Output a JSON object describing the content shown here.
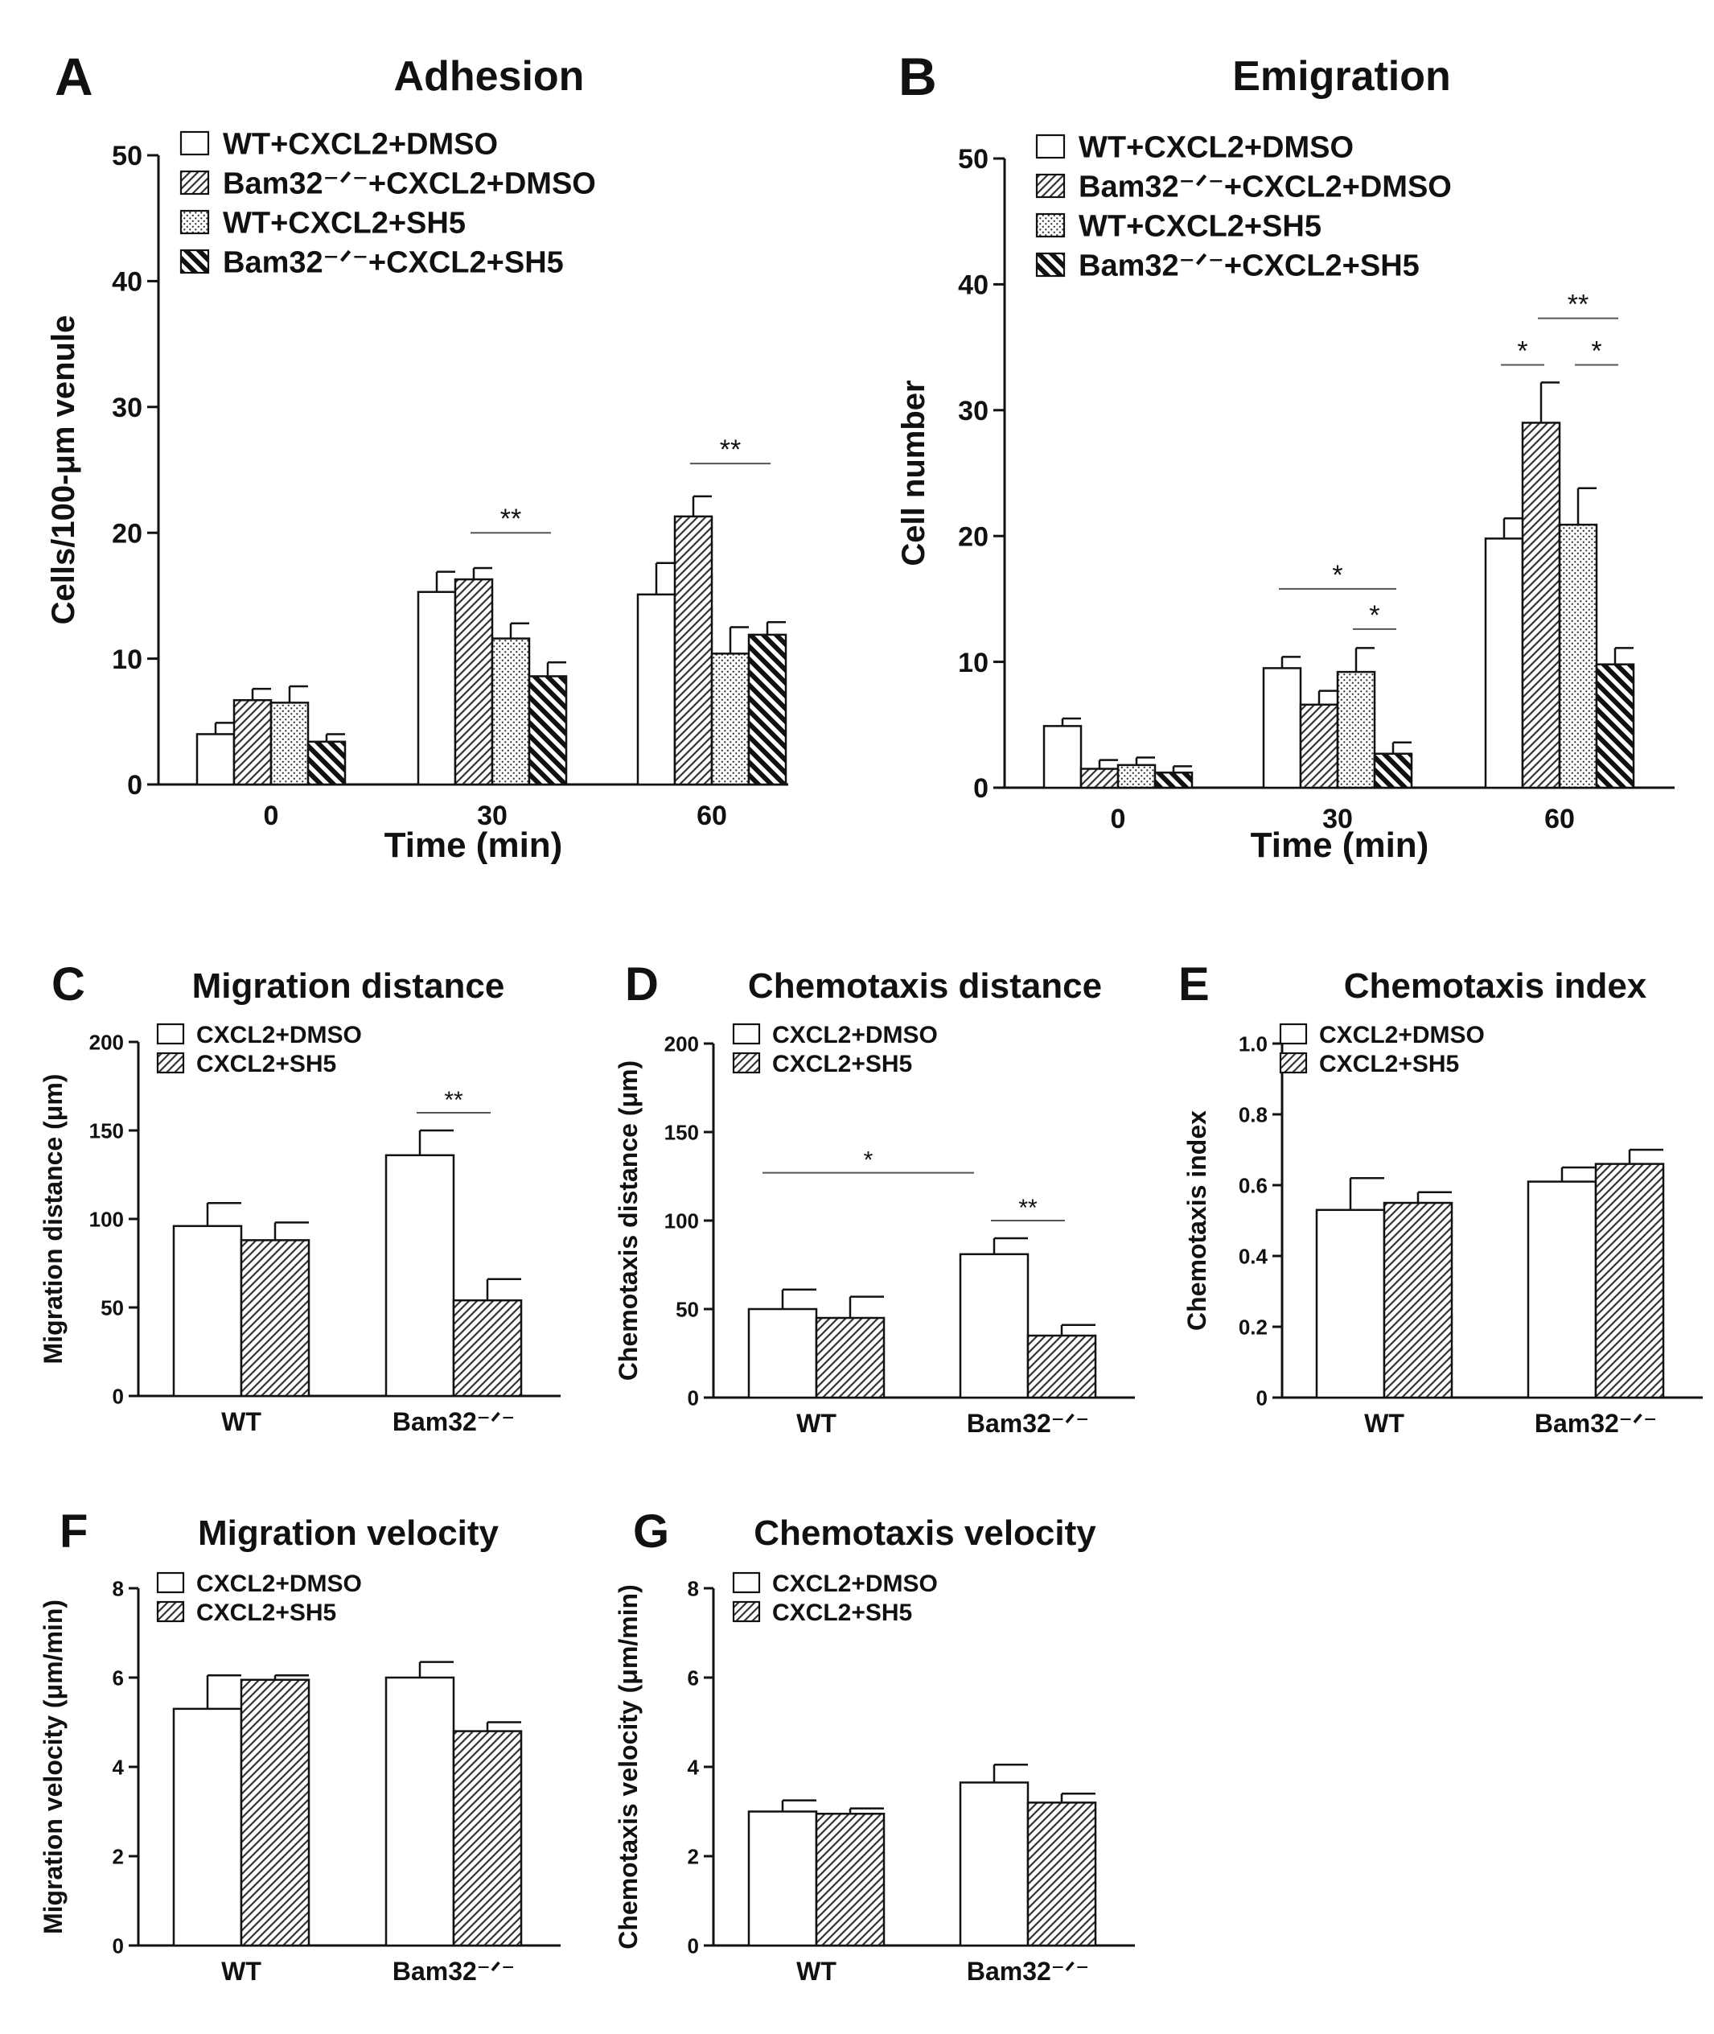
{
  "figure": {
    "series_styles": {
      "WT+CXCL2+DMSO": "open",
      "Bam32−/−+CXCL2+DMSO": "hatch",
      "WT+CXCL2+SH5": "dots",
      "Bam32−/−+CXCL2+SH5": "backslash",
      "CXCL2+DMSO": "open",
      "CXCL2+SH5": "hatch"
    },
    "colors": {
      "ink": "#111111",
      "background": "#ffffff",
      "hatch": "#333333"
    }
  },
  "chart_data": [
    {
      "panel": "A",
      "type": "bar",
      "title": "Adhesion",
      "xlabel": "Time (min)",
      "ylabel": "Cells/100-μm venule",
      "categories": [
        "0",
        "30",
        "60"
      ],
      "ylim": [
        0,
        50
      ],
      "yticks": [
        "0",
        "10",
        "20",
        "30",
        "40",
        "50"
      ],
      "series": [
        {
          "name": "WT+CXCL2+DMSO",
          "label": "WT+CXCL2+DMSO",
          "values": [
            4,
            15.3,
            15.1
          ],
          "errors": [
            0.9,
            1.6,
            2.5
          ]
        },
        {
          "name": "Bam32−/−+CXCL2+DMSO",
          "label": "Bam32⁻ᐟ⁻+CXCL2+DMSO",
          "values": [
            6.7,
            16.3,
            21.3
          ],
          "errors": [
            0.9,
            0.9,
            1.6
          ]
        },
        {
          "name": "WT+CXCL2+SH5",
          "label": "WT+CXCL2+SH5",
          "values": [
            6.5,
            11.6,
            10.4
          ],
          "errors": [
            1.3,
            1.2,
            2.1
          ]
        },
        {
          "name": "Bam32−/−+CXCL2+SH5",
          "label": "Bam32⁻ᐟ⁻+CXCL2+SH5",
          "values": [
            3.4,
            8.6,
            11.9
          ],
          "errors": [
            0.6,
            1.1,
            1.0
          ]
        }
      ],
      "significance": [
        {
          "text": "**",
          "category": 1,
          "from": 1,
          "to": 3,
          "y": 20
        },
        {
          "text": "**",
          "category": 2,
          "from": 1,
          "to": 3,
          "y": 25.5
        }
      ]
    },
    {
      "panel": "B",
      "type": "bar",
      "title": "Emigration",
      "xlabel": "Time (min)",
      "ylabel": "Cell number",
      "categories": [
        "0",
        "30",
        "60"
      ],
      "ylim": [
        0,
        50
      ],
      "yticks": [
        "0",
        "10",
        "20",
        "30",
        "40",
        "50"
      ],
      "series": [
        {
          "name": "WT+CXCL2+DMSO",
          "label": "WT+CXCL2+DMSO",
          "values": [
            4.9,
            9.5,
            19.8
          ],
          "errors": [
            0.6,
            0.9,
            1.6
          ]
        },
        {
          "name": "Bam32−/−+CXCL2+DMSO",
          "label": "Bam32⁻ᐟ⁻+CXCL2+DMSO",
          "values": [
            1.5,
            6.6,
            29
          ],
          "errors": [
            0.7,
            1.1,
            3.2
          ]
        },
        {
          "name": "WT+CXCL2+SH5",
          "label": "WT+CXCL2+SH5",
          "values": [
            1.8,
            9.2,
            20.9
          ],
          "errors": [
            0.6,
            1.9,
            2.9
          ]
        },
        {
          "name": "Bam32−/−+CXCL2+SH5",
          "label": "Bam32⁻ᐟ⁻+CXCL2+SH5",
          "values": [
            1.2,
            2.7,
            9.8
          ],
          "errors": [
            0.5,
            0.9,
            1.3
          ]
        }
      ],
      "significance": [
        {
          "text": "*",
          "category": 1,
          "from": 0,
          "to": 3,
          "y": 15.8
        },
        {
          "text": "*",
          "category": 1,
          "from": 2,
          "to": 3,
          "y": 12.6
        },
        {
          "text": "**",
          "category": 2,
          "from": 1,
          "to": 3,
          "y": 37.3
        },
        {
          "text": "*",
          "category": 2,
          "from": 0,
          "to": 1,
          "y": 33.6
        },
        {
          "text": "*",
          "category": 2,
          "from": 2,
          "to": 3,
          "y": 33.6
        }
      ]
    },
    {
      "panel": "C",
      "type": "bar",
      "title": "Migration distance",
      "xlabel": "",
      "ylabel": "Migration distance (μm)",
      "categories": [
        "WT",
        "Bam32⁻ᐟ⁻"
      ],
      "ylim": [
        0,
        200
      ],
      "yticks": [
        "0",
        "50",
        "100",
        "150",
        "200"
      ],
      "series": [
        {
          "name": "CXCL2+DMSO",
          "label": "CXCL2+DMSO",
          "values": [
            96,
            136
          ],
          "errors": [
            13,
            14
          ]
        },
        {
          "name": "CXCL2+SH5",
          "label": "CXCL2+SH5",
          "values": [
            88,
            54
          ],
          "errors": [
            10,
            12
          ]
        }
      ],
      "significance": [
        {
          "text": "**",
          "category": 1,
          "from": 0,
          "to": 1,
          "y": 160
        }
      ]
    },
    {
      "panel": "D",
      "type": "bar",
      "title": "Chemotaxis distance",
      "xlabel": "",
      "ylabel": "Chemotaxis distance (μm)",
      "categories": [
        "WT",
        "Bam32⁻ᐟ⁻"
      ],
      "ylim": [
        0,
        200
      ],
      "yticks": [
        "0",
        "50",
        "100",
        "150",
        "200"
      ],
      "series": [
        {
          "name": "CXCL2+DMSO",
          "label": "CXCL2+DMSO",
          "values": [
            50,
            81
          ],
          "errors": [
            11,
            9
          ]
        },
        {
          "name": "CXCL2+SH5",
          "label": "CXCL2+SH5",
          "values": [
            45,
            35
          ],
          "errors": [
            12,
            6
          ]
        }
      ],
      "significance": [
        {
          "text": "*",
          "span": [
            0,
            1
          ],
          "series": 0,
          "y": 127
        },
        {
          "text": "**",
          "category": 1,
          "from": 0,
          "to": 1,
          "y": 100
        }
      ]
    },
    {
      "panel": "E",
      "type": "bar",
      "title": "Chemotaxis index",
      "xlabel": "",
      "ylabel": "Chemotaxis index",
      "categories": [
        "WT",
        "Bam32⁻ᐟ⁻"
      ],
      "ylim": [
        0,
        1
      ],
      "yticks": [
        "0",
        "0.2",
        "0.4",
        "0.6",
        "0.8",
        "1.0"
      ],
      "series": [
        {
          "name": "CXCL2+DMSO",
          "label": "CXCL2+DMSO",
          "values": [
            0.53,
            0.61
          ],
          "errors": [
            0.09,
            0.04
          ]
        },
        {
          "name": "CXCL2+SH5",
          "label": "CXCL2+SH5",
          "values": [
            0.55,
            0.66
          ],
          "errors": [
            0.03,
            0.04
          ]
        }
      ],
      "significance": []
    },
    {
      "panel": "F",
      "type": "bar",
      "title": "Migration velocity",
      "xlabel": "",
      "ylabel": "Migration velocity (μm/min)",
      "categories": [
        "WT",
        "Bam32⁻ᐟ⁻"
      ],
      "ylim": [
        0,
        8
      ],
      "yticks": [
        "0",
        "2",
        "4",
        "6",
        "8"
      ],
      "series": [
        {
          "name": "CXCL2+DMSO",
          "label": "CXCL2+DMSO",
          "values": [
            5.3,
            6.0
          ],
          "errors": [
            0.75,
            0.35
          ]
        },
        {
          "name": "CXCL2+SH5",
          "label": "CXCL2+SH5",
          "values": [
            5.95,
            4.8
          ],
          "errors": [
            0.1,
            0.2
          ]
        }
      ],
      "significance": []
    },
    {
      "panel": "G",
      "type": "bar",
      "title": "Chemotaxis velocity",
      "xlabel": "",
      "ylabel": "Chemotaxis velocity (μm/min)",
      "categories": [
        "WT",
        "Bam32⁻ᐟ⁻"
      ],
      "ylim": [
        0,
        8
      ],
      "yticks": [
        "0",
        "2",
        "4",
        "6",
        "8"
      ],
      "series": [
        {
          "name": "CXCL2+DMSO",
          "label": "CXCL2+DMSO",
          "values": [
            3.0,
            3.65
          ],
          "errors": [
            0.25,
            0.4
          ]
        },
        {
          "name": "CXCL2+SH5",
          "label": "CXCL2+SH5",
          "values": [
            2.95,
            3.2
          ],
          "errors": [
            0.12,
            0.2
          ]
        }
      ],
      "significance": []
    }
  ]
}
